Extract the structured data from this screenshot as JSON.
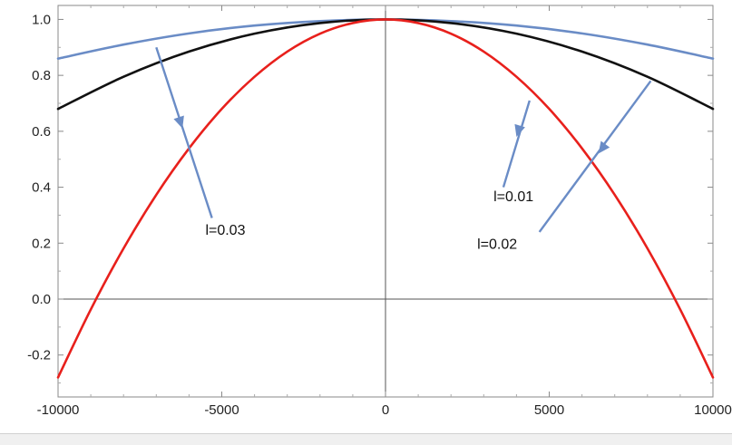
{
  "chart_data": {
    "type": "line",
    "title": "",
    "xlabel": "",
    "ylabel": "",
    "xlim": [
      -10000,
      10000
    ],
    "ylim": [
      -0.35,
      1.05
    ],
    "x_ticks": [
      -10000,
      -5000,
      0,
      5000,
      10000
    ],
    "x_tick_labels": [
      "-10000",
      "-5000",
      "0",
      "5000",
      "10000"
    ],
    "y_ticks": [
      -0.2,
      0.0,
      0.2,
      0.4,
      0.6,
      0.8,
      1.0
    ],
    "y_tick_labels": [
      "-0.2",
      "0.0",
      "0.2",
      "0.4",
      "0.6",
      "0.8",
      "1.0"
    ],
    "grid": false,
    "series": [
      {
        "color": "#6a8cc6",
        "x": [
          -10000,
          -8000,
          -6000,
          -4000,
          -2000,
          0,
          2000,
          4000,
          6000,
          8000,
          10000
        ],
        "y": [
          0.86,
          0.91,
          0.95,
          0.978,
          0.994,
          1.0,
          0.994,
          0.978,
          0.95,
          0.91,
          0.86
        ]
      },
      {
        "color": "#111111",
        "x": [
          -10000,
          -8000,
          -6000,
          -4000,
          -2000,
          0,
          2000,
          4000,
          6000,
          8000,
          10000
        ],
        "y": [
          0.68,
          0.795,
          0.885,
          0.949,
          0.987,
          1.0,
          0.987,
          0.949,
          0.885,
          0.795,
          0.68
        ]
      },
      {
        "color": "#e8201c",
        "x": [
          -10000,
          -9000,
          -8000,
          -7000,
          -6000,
          -5000,
          -4000,
          -3000,
          -2000,
          -1000,
          0,
          1000,
          2000,
          3000,
          4000,
          5000,
          6000,
          7000,
          8000,
          9000,
          10000
        ],
        "y": [
          -0.28,
          -0.037,
          0.181,
          0.373,
          0.539,
          0.68,
          0.795,
          0.885,
          0.949,
          0.987,
          1.0,
          0.987,
          0.949,
          0.885,
          0.795,
          0.68,
          0.539,
          0.373,
          0.181,
          -0.037,
          -0.28
        ]
      }
    ],
    "annotations": [
      {
        "text": "l=0.03",
        "label_x": -5500,
        "label_y": 0.23,
        "arrow_from": [
          -5300,
          0.29
        ],
        "arrow_to": [
          -7000,
          0.9
        ],
        "arrowhead_at": [
          -6200,
          0.61
        ]
      },
      {
        "text": "l=0.01",
        "label_x": 3300,
        "label_y": 0.35,
        "arrow_from": [
          3600,
          0.4
        ],
        "arrow_to": [
          4400,
          0.71
        ],
        "arrowhead_at": [
          4000,
          0.58
        ]
      },
      {
        "text": "l=0.02",
        "label_x": 2800,
        "label_y": 0.18,
        "arrow_from": [
          4700,
          0.24
        ],
        "arrow_to": [
          8100,
          0.78
        ],
        "arrowhead_at": [
          6500,
          0.52
        ]
      }
    ]
  }
}
